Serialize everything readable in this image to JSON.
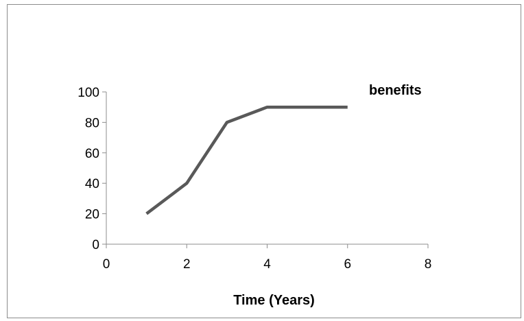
{
  "chart_data": {
    "type": "line",
    "title": "",
    "xlabel": "Time (Years)",
    "ylabel": "",
    "xlim": [
      0,
      8
    ],
    "ylim": [
      0,
      100
    ],
    "x_ticks": [
      0,
      2,
      4,
      6,
      8
    ],
    "y_ticks": [
      0,
      20,
      40,
      60,
      80,
      100
    ],
    "grid": false,
    "legend_position": "top-right",
    "series": [
      {
        "name": "benefits",
        "color": "#595959",
        "points": [
          {
            "x": 1,
            "y": 20
          },
          {
            "x": 2,
            "y": 40
          },
          {
            "x": 3,
            "y": 80
          },
          {
            "x": 4,
            "y": 90
          },
          {
            "x": 5,
            "y": 90
          },
          {
            "x": 6,
            "y": 90
          }
        ]
      }
    ]
  }
}
